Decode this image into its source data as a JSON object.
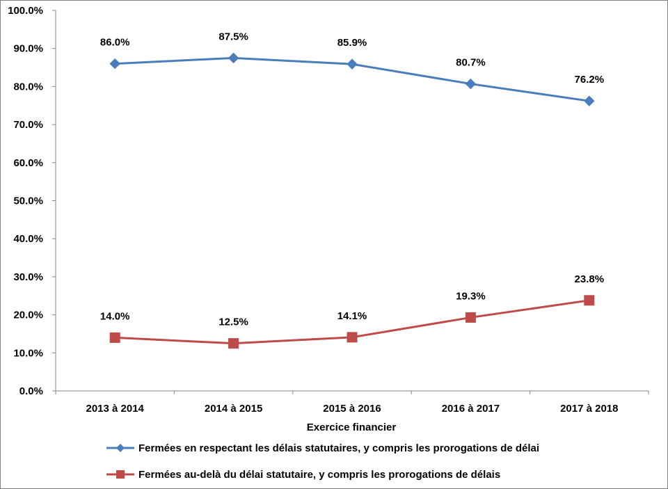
{
  "chart_data": {
    "type": "line",
    "categories": [
      "2013 à 2014",
      "2014 à 2015",
      "2015 à 2016",
      "2016 à 2017",
      "2017 à 2018"
    ],
    "series": [
      {
        "name": "Fermées en respectant les délais statutaires, y compris les prorogations de délai",
        "values": [
          86.0,
          87.5,
          85.9,
          80.7,
          76.2
        ],
        "labels": [
          "86.0%",
          "87.5%",
          "85.9%",
          "80.7%",
          "76.2%"
        ],
        "color": "#4a7ebb",
        "marker": "diamond"
      },
      {
        "name": "Fermées au-delà du délai statutaire, y compris les prorogations de délais",
        "values": [
          14.0,
          12.5,
          14.1,
          19.3,
          23.8
        ],
        "labels": [
          "14.0%",
          "12.5%",
          "14.1%",
          "19.3%",
          "23.8%"
        ],
        "color": "#be4b48",
        "marker": "square"
      }
    ],
    "xlabel": "Exercice financier",
    "ylabel": "",
    "ylim": [
      0,
      100
    ],
    "yticks": [
      "0.0%",
      "10.0%",
      "20.0%",
      "30.0%",
      "40.0%",
      "50.0%",
      "60.0%",
      "70.0%",
      "80.0%",
      "90.0%",
      "100.0%"
    ],
    "grid": false,
    "legend_position": "bottom"
  }
}
